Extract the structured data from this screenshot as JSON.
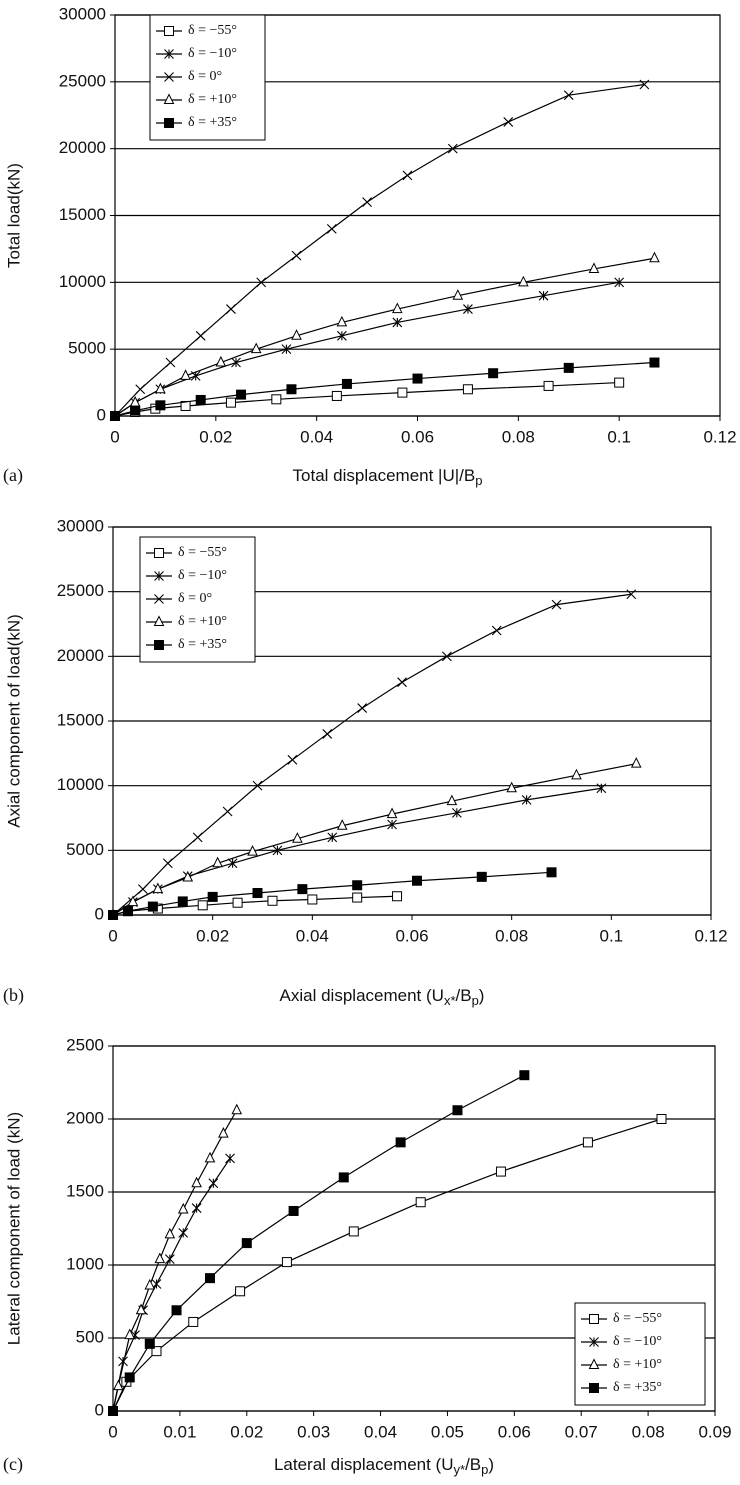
{
  "chart_data": [
    {
      "type": "line",
      "panel_label": "(a)",
      "ylabel": "Total load(kN)",
      "xlabel": [
        "Total displacement |U|/B",
        "p"
      ],
      "xlim": [
        0,
        0.12
      ],
      "xticks": [
        0,
        0.02,
        0.04,
        0.06,
        0.08,
        0.1,
        0.12
      ],
      "ylim": [
        0,
        30000
      ],
      "yticks": [
        0,
        5000,
        10000,
        15000,
        20000,
        25000,
        30000
      ],
      "grid": true,
      "legend": "upper left",
      "series": [
        {
          "name": "δ = −55°",
          "color": "#000000",
          "marker": "square-open",
          "x": [
            0,
            0.004,
            0.008,
            0.014,
            0.023,
            0.032,
            0.044,
            0.057,
            0.07,
            0.086,
            0.1
          ],
          "values": [
            0,
            300,
            550,
            750,
            1000,
            1250,
            1500,
            1750,
            2000,
            2250,
            2500
          ]
        },
        {
          "name": "δ = −10°",
          "color": "#000000",
          "marker": "asterisk",
          "x": [
            0,
            0.004,
            0.009,
            0.016,
            0.024,
            0.034,
            0.045,
            0.056,
            0.07,
            0.085,
            0.1
          ],
          "values": [
            0,
            1000,
            2000,
            3000,
            4000,
            5000,
            6000,
            7000,
            8000,
            9000,
            10000
          ]
        },
        {
          "name": "δ = 0°",
          "color": "#000000",
          "marker": "x",
          "x": [
            0,
            0.005,
            0.011,
            0.017,
            0.023,
            0.029,
            0.036,
            0.043,
            0.05,
            0.058,
            0.067,
            0.078,
            0.09,
            0.105
          ],
          "values": [
            0,
            2000,
            4000,
            6000,
            8000,
            10000,
            12000,
            14000,
            16000,
            18000,
            20000,
            22000,
            24000,
            24800
          ]
        },
        {
          "name": "δ = +10°",
          "color": "#000000",
          "marker": "triangle-open",
          "x": [
            0,
            0.004,
            0.009,
            0.014,
            0.021,
            0.028,
            0.036,
            0.045,
            0.056,
            0.068,
            0.081,
            0.095,
            0.107
          ],
          "values": [
            0,
            1000,
            2000,
            3000,
            4000,
            5000,
            6000,
            7000,
            8000,
            9000,
            10000,
            11000,
            11800
          ]
        },
        {
          "name": "δ = +35°",
          "color": "#000000",
          "marker": "square-filled",
          "x": [
            0,
            0.004,
            0.009,
            0.017,
            0.025,
            0.035,
            0.046,
            0.06,
            0.075,
            0.09,
            0.107
          ],
          "values": [
            0,
            400,
            800,
            1200,
            1600,
            2000,
            2400,
            2800,
            3200,
            3600,
            4000
          ]
        }
      ]
    },
    {
      "type": "line",
      "panel_label": "(b)",
      "ylabel": "Axial component of load(kN)",
      "xlabel": [
        "Axial displacement (U",
        "x*",
        "/B",
        "p",
        ")"
      ],
      "xlim": [
        0,
        0.12
      ],
      "xticks": [
        0,
        0.02,
        0.04,
        0.06,
        0.08,
        0.1,
        0.12
      ],
      "ylim": [
        0,
        30000
      ],
      "yticks": [
        0,
        5000,
        10000,
        15000,
        20000,
        25000,
        30000
      ],
      "grid": true,
      "legend": "upper left",
      "series": [
        {
          "name": "δ = −55°",
          "color": "#000000",
          "marker": "square-open",
          "x": [
            0,
            0.003,
            0.009,
            0.018,
            0.025,
            0.032,
            0.04,
            0.049,
            0.057
          ],
          "values": [
            0,
            300,
            500,
            750,
            950,
            1100,
            1200,
            1350,
            1450
          ]
        },
        {
          "name": "δ = −10°",
          "color": "#000000",
          "marker": "asterisk",
          "x": [
            0,
            0.004,
            0.009,
            0.015,
            0.024,
            0.033,
            0.044,
            0.056,
            0.069,
            0.083,
            0.098
          ],
          "values": [
            0,
            1000,
            2000,
            3000,
            4000,
            5000,
            6000,
            7000,
            7900,
            8900,
            9800
          ]
        },
        {
          "name": "δ = 0°",
          "color": "#000000",
          "marker": "x",
          "x": [
            0,
            0.006,
            0.011,
            0.017,
            0.023,
            0.029,
            0.036,
            0.043,
            0.05,
            0.058,
            0.067,
            0.077,
            0.089,
            0.104
          ],
          "values": [
            0,
            2000,
            4000,
            6000,
            8000,
            10000,
            12000,
            14000,
            16000,
            18000,
            20000,
            22000,
            24000,
            24800
          ]
        },
        {
          "name": "δ = +10°",
          "color": "#000000",
          "marker": "triangle-open",
          "x": [
            0,
            0.004,
            0.009,
            0.015,
            0.021,
            0.028,
            0.037,
            0.046,
            0.056,
            0.068,
            0.08,
            0.093,
            0.105
          ],
          "values": [
            0,
            1000,
            2000,
            2900,
            4000,
            4900,
            5900,
            6900,
            7800,
            8800,
            9800,
            10800,
            11700
          ]
        },
        {
          "name": "δ = +35°",
          "color": "#000000",
          "marker": "square-filled",
          "x": [
            0,
            0.003,
            0.008,
            0.014,
            0.02,
            0.029,
            0.038,
            0.049,
            0.061,
            0.074,
            0.088
          ],
          "values": [
            0,
            300,
            650,
            1050,
            1400,
            1700,
            2000,
            2300,
            2650,
            2950,
            3300
          ]
        }
      ]
    },
    {
      "type": "line",
      "panel_label": "(c)",
      "ylabel": "Lateral component of load (kN)",
      "xlabel": [
        "Lateral displacement (U",
        "y*",
        "/B",
        "p",
        ")"
      ],
      "xlim": [
        0,
        0.09
      ],
      "xticks": [
        0,
        0.01,
        0.02,
        0.03,
        0.04,
        0.05,
        0.06,
        0.07,
        0.08,
        0.09
      ],
      "ylim": [
        0,
        2500
      ],
      "yticks": [
        0,
        500,
        1000,
        1500,
        2000,
        2500
      ],
      "grid": true,
      "legend": "lower right",
      "series": [
        {
          "name": "δ = −55°",
          "color": "#000000",
          "marker": "square-open",
          "x": [
            0,
            0.002,
            0.0065,
            0.012,
            0.019,
            0.026,
            0.036,
            0.046,
            0.058,
            0.071,
            0.082
          ],
          "values": [
            0,
            200,
            410,
            610,
            820,
            1020,
            1230,
            1430,
            1640,
            1840,
            2000
          ]
        },
        {
          "name": "δ = −10°",
          "color": "#000000",
          "marker": "asterisk",
          "x": [
            0,
            0.0015,
            0.0033,
            0.0045,
            0.0065,
            0.0085,
            0.0105,
            0.0125,
            0.015,
            0.0175
          ],
          "values": [
            0,
            340,
            520,
            690,
            870,
            1040,
            1220,
            1390,
            1560,
            1730
          ]
        },
        {
          "name": "δ = +10°",
          "color": "#000000",
          "marker": "triangle-open",
          "x": [
            0,
            0.0008,
            0.0025,
            0.0042,
            0.0055,
            0.007,
            0.0085,
            0.0105,
            0.0125,
            0.0145,
            0.0165,
            0.0185
          ],
          "values": [
            0,
            170,
            520,
            690,
            860,
            1040,
            1210,
            1380,
            1560,
            1730,
            1900,
            2060
          ]
        },
        {
          "name": "δ = +35°",
          "color": "#000000",
          "marker": "square-filled",
          "x": [
            0,
            0.0025,
            0.0055,
            0.0095,
            0.0145,
            0.02,
            0.027,
            0.0345,
            0.043,
            0.0515,
            0.0615
          ],
          "values": [
            0,
            230,
            460,
            690,
            910,
            1150,
            1370,
            1600,
            1840,
            2060,
            2300
          ]
        }
      ]
    }
  ]
}
